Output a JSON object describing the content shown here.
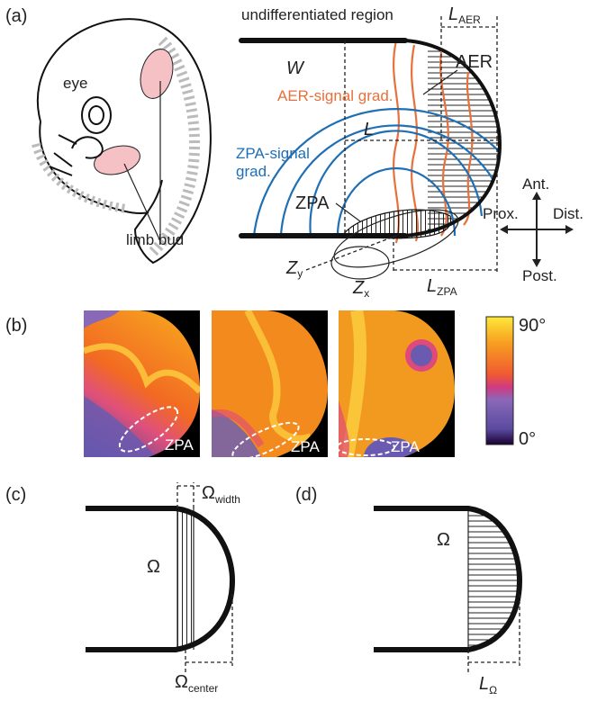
{
  "panel_a": {
    "label": "(a)",
    "eye": "eye",
    "limb_bud": "limb bud",
    "undifferentiated_region": "undifferentiated region",
    "l_aer": {
      "main": "L",
      "sub": "AER"
    },
    "w": "W",
    "aer": "AER",
    "aer_signal": "AER-signal grad.",
    "l": "L",
    "zpa_signal": [
      "ZPA-signal",
      "grad."
    ],
    "zpa": "ZPA",
    "directions": {
      "ant": "Ant.",
      "prox": "Prox.",
      "dist": "Dist.",
      "post": "Post."
    },
    "z_y": {
      "main": "Z",
      "sub": "y"
    },
    "z_x": {
      "main": "Z",
      "sub": "x"
    },
    "l_zpa": {
      "main": "L",
      "sub": "ZPA"
    }
  },
  "panel_b": {
    "label": "(b)",
    "zpa_labels": [
      "ZPA",
      "ZPA",
      "ZPA"
    ],
    "colorbar": {
      "max": "90°",
      "min": "0°"
    }
  },
  "panel_c": {
    "label": "(c)",
    "omega": "Ω",
    "omega_width": {
      "main": "Ω",
      "sub": "width"
    },
    "omega_center": {
      "main": "Ω",
      "sub": "center"
    }
  },
  "panel_d": {
    "label": "(d)",
    "omega": "Ω",
    "l_omega": {
      "main": "L",
      "sub": "Ω"
    }
  }
}
